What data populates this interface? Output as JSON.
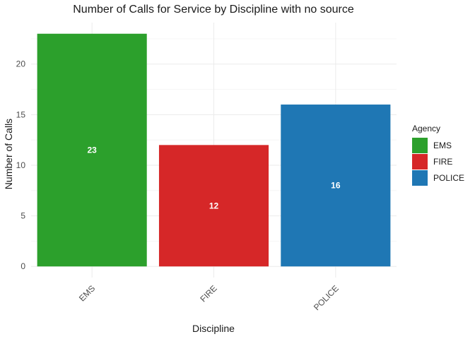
{
  "chart_data": {
    "type": "bar",
    "title": "Number of Calls for Service by Discipline with no source",
    "xlabel": "Discipline",
    "ylabel": "Number of Calls",
    "categories": [
      "EMS",
      "FIRE",
      "POLICE"
    ],
    "values": [
      23,
      12,
      16
    ],
    "data_labels": [
      "23",
      "12",
      "16"
    ],
    "ylim": [
      0,
      24
    ],
    "yticks": [
      0,
      5,
      10,
      15,
      20
    ],
    "ytick_labels": [
      "0",
      "5",
      "10",
      "15",
      "20"
    ],
    "grid": true,
    "colors": [
      "#2ca02c",
      "#d62728",
      "#1f77b4"
    ],
    "legend": {
      "title": "Agency",
      "placement": "right",
      "items": [
        "EMS",
        "FIRE",
        "POLICE"
      ]
    }
  }
}
